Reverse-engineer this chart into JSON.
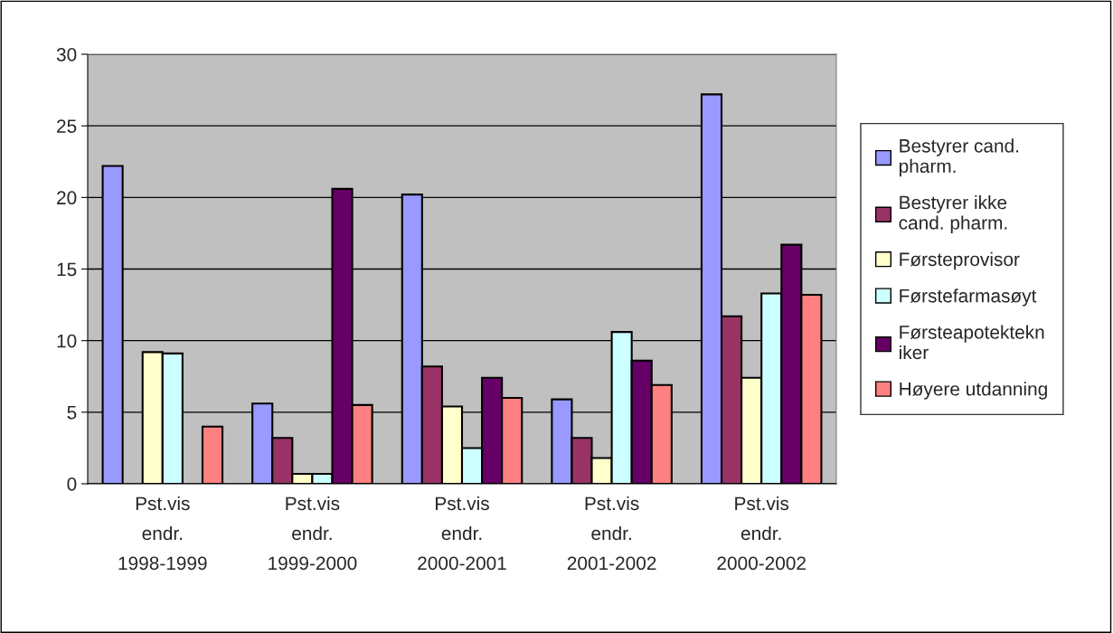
{
  "chart_data": {
    "type": "bar",
    "categories": [
      "Pst.vis\nendr.\n1998-1999",
      "Pst.vis\nendr.\n1999-2000",
      "Pst.vis\nendr.\n2000-2001",
      "Pst.vis\nendr.\n2001-2002",
      "Pst.vis\nendr.\n2000-2002"
    ],
    "series": [
      {
        "name": "Bestyrer cand.\npharm.",
        "color": "#9999ff",
        "values": [
          22.2,
          5.6,
          20.2,
          5.9,
          27.2
        ]
      },
      {
        "name": "Bestyrer ikke\ncand. pharm.",
        "color": "#993366",
        "values": [
          null,
          3.2,
          8.2,
          3.2,
          11.7
        ]
      },
      {
        "name": "Førsteprovisor",
        "color": "#ffffcc",
        "values": [
          9.2,
          0.7,
          5.4,
          1.8,
          7.4
        ]
      },
      {
        "name": "Førstefarmasøyt",
        "color": "#ccffff",
        "values": [
          9.1,
          0.7,
          2.5,
          10.6,
          13.3
        ]
      },
      {
        "name": "Førsteapotektekn\niker",
        "color": "#660066",
        "values": [
          null,
          20.6,
          7.4,
          8.6,
          16.7
        ]
      },
      {
        "name": "Høyere utdanning",
        "color": "#ff8080",
        "values": [
          4.0,
          5.5,
          6.0,
          6.9,
          13.2
        ]
      }
    ],
    "ylim": [
      0,
      30
    ],
    "yticks": [
      0,
      5,
      10,
      15,
      20,
      25,
      30
    ],
    "grid": "y",
    "legend": "right"
  }
}
